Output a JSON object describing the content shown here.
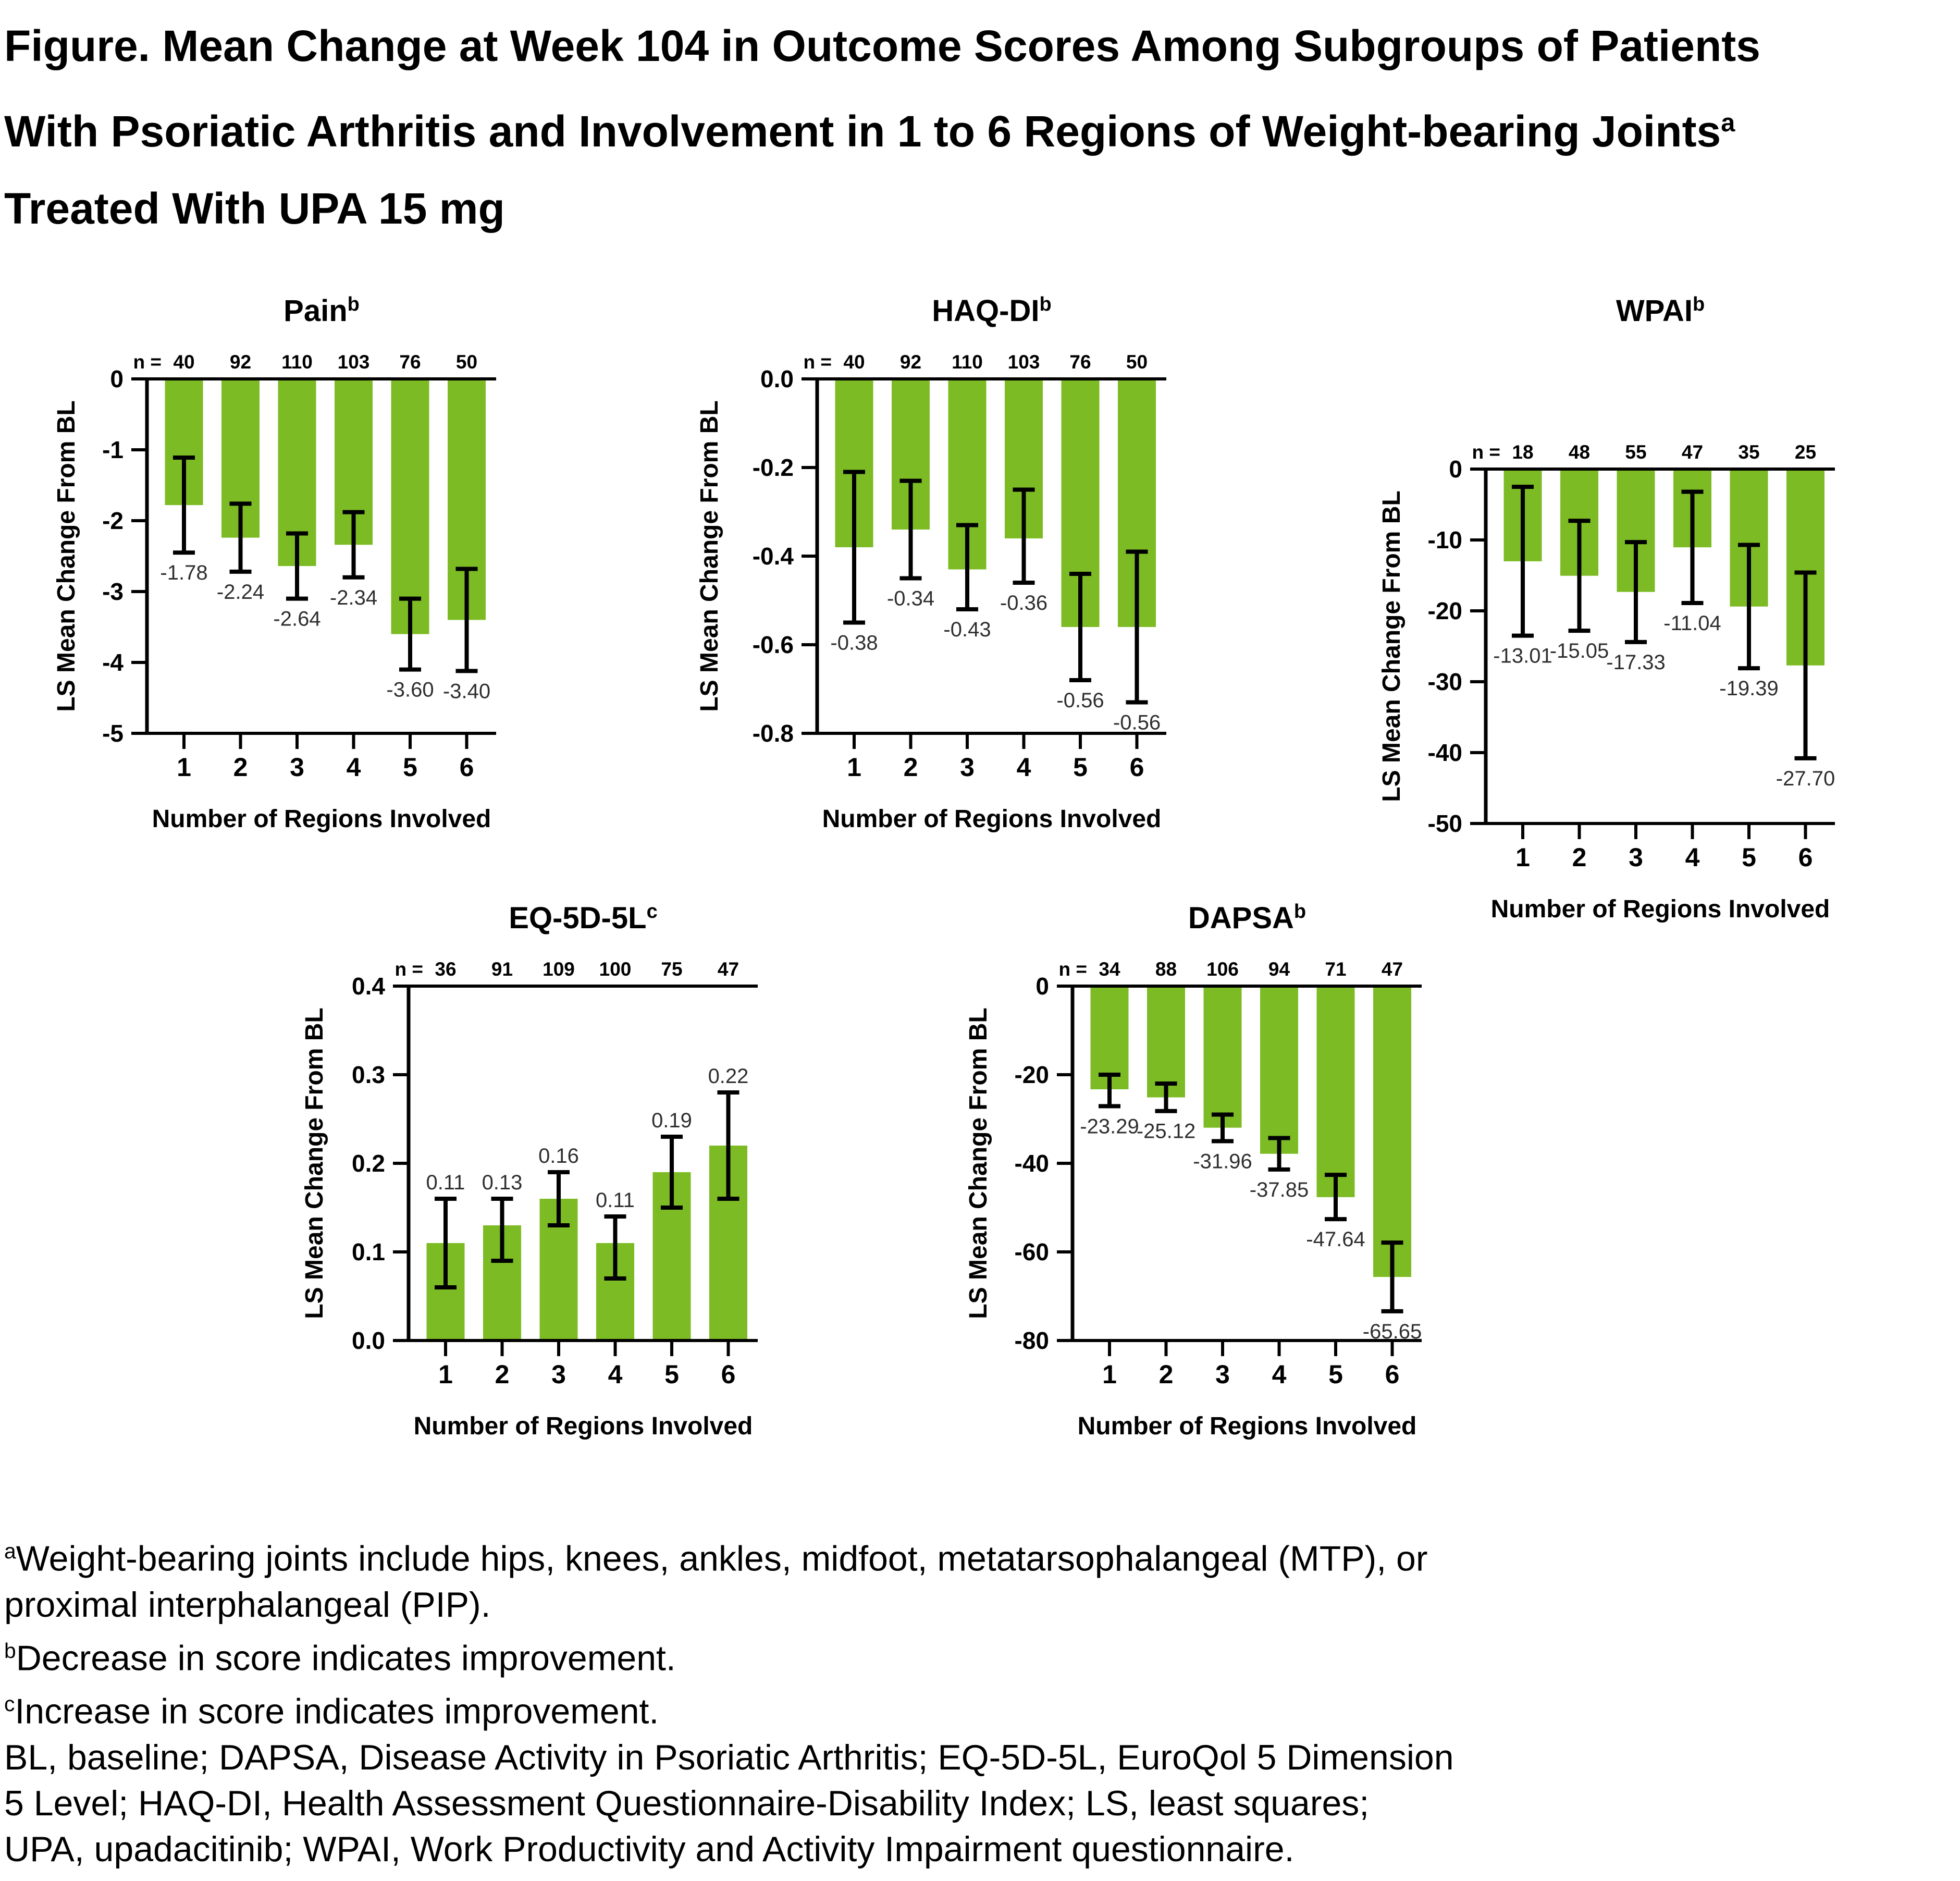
{
  "figure_title": {
    "line1": "Figure. Mean Change at Week 104 in Outcome Scores Among Subgroups of Patients",
    "line2": "With Psoriatic Arthritis and Involvement in 1 to 6 Regions of Weight-bearing Joints",
    "line2_sup": "a",
    "line3": "Treated With UPA 15 mg"
  },
  "colors": {
    "bar_green": "#7CBB23",
    "axis_black": "#000000",
    "error_bar_black": "#000000",
    "value_label_gray": "#2e2e2e",
    "background": "#FFFFFF"
  },
  "chart_data": [
    {
      "type": "bar",
      "id": "pain",
      "title": "Pain",
      "title_sup": "b",
      "n_label": "n =",
      "n": [
        "40",
        "92",
        "110",
        "103",
        "76",
        "50"
      ],
      "categories": [
        "1",
        "2",
        "3",
        "4",
        "5",
        "6"
      ],
      "values": [
        -1.78,
        -2.24,
        -2.64,
        -2.34,
        -3.6,
        -3.4
      ],
      "value_labels": [
        "-1.78",
        "-2.24",
        "-2.64",
        "-2.34",
        "-3.60",
        "-3.40"
      ],
      "err_lo": [
        -2.45,
        -2.72,
        -3.1,
        -2.8,
        -4.1,
        -4.12
      ],
      "err_hi": [
        -1.11,
        -1.76,
        -2.18,
        -1.88,
        -3.1,
        -2.68
      ],
      "ylim": [
        -5,
        0
      ],
      "yticks": [
        "0",
        "-1",
        "-2",
        "-3",
        "-4",
        "-5"
      ],
      "ytick_values": [
        0,
        -1,
        -2,
        -3,
        -4,
        -5
      ],
      "xlabel": "Number of Regions Involved",
      "ylabel": "LS Mean Change From BL",
      "grid": false,
      "legend": false
    },
    {
      "type": "bar",
      "id": "haq-di",
      "title": "HAQ-DI",
      "title_sup": "b",
      "n_label": "n =",
      "n": [
        "40",
        "92",
        "110",
        "103",
        "76",
        "50"
      ],
      "categories": [
        "1",
        "2",
        "3",
        "4",
        "5",
        "6"
      ],
      "values": [
        -0.38,
        -0.34,
        -0.43,
        -0.36,
        -0.56,
        -0.56
      ],
      "value_labels": [
        "-0.38",
        "-0.34",
        "-0.43",
        "-0.36",
        "-0.56",
        "-0.56"
      ],
      "err_lo": [
        -0.55,
        -0.45,
        -0.52,
        -0.46,
        -0.68,
        -0.73
      ],
      "err_hi": [
        -0.21,
        -0.23,
        -0.33,
        -0.25,
        -0.44,
        -0.39
      ],
      "ylim": [
        -0.8,
        0
      ],
      "yticks": [
        "0.0",
        "-0.2",
        "-0.4",
        "-0.6",
        "-0.8"
      ],
      "ytick_values": [
        0,
        -0.2,
        -0.4,
        -0.6,
        -0.8
      ],
      "xlabel": "Number of Regions Involved",
      "ylabel": "LS Mean Change From BL",
      "grid": false,
      "legend": false
    },
    {
      "type": "bar",
      "id": "wpai",
      "title": "WPAI",
      "title_sup": "b",
      "n_label": "n =",
      "n": [
        "18",
        "48",
        "55",
        "47",
        "35",
        "25"
      ],
      "categories": [
        "1",
        "2",
        "3",
        "4",
        "5",
        "6"
      ],
      "values": [
        -13.01,
        -15.05,
        -17.33,
        -11.04,
        -19.39,
        -27.7
      ],
      "value_labels": [
        "-13.01",
        "-15.05",
        "-17.33",
        "-11.04",
        "-19.39",
        "-27.70"
      ],
      "err_lo": [
        -23.5,
        -22.8,
        -24.4,
        -18.9,
        -28.1,
        -40.8
      ],
      "err_hi": [
        -2.5,
        -7.3,
        -10.3,
        -3.2,
        -10.7,
        -14.6
      ],
      "ylim": [
        -50,
        0
      ],
      "yticks": [
        "0",
        "-10",
        "-20",
        "-30",
        "-40",
        "-50"
      ],
      "ytick_values": [
        0,
        -10,
        -20,
        -30,
        -40,
        -50
      ],
      "xlabel": "Number of Regions Involved",
      "ylabel": "LS Mean Change From BL",
      "grid": false,
      "legend": false
    },
    {
      "type": "bar",
      "id": "eq-5d-5l",
      "title": "EQ-5D-5L",
      "title_sup": "c",
      "n_label": "n =",
      "n": [
        "36",
        "91",
        "109",
        "100",
        "75",
        "47"
      ],
      "categories": [
        "1",
        "2",
        "3",
        "4",
        "5",
        "6"
      ],
      "values": [
        0.11,
        0.13,
        0.16,
        0.11,
        0.19,
        0.22
      ],
      "value_labels": [
        "0.11",
        "0.13",
        "0.16",
        "0.11",
        "0.19",
        "0.22"
      ],
      "err_lo": [
        0.06,
        0.09,
        0.13,
        0.07,
        0.15,
        0.16
      ],
      "err_hi": [
        0.16,
        0.16,
        0.19,
        0.14,
        0.23,
        0.28
      ],
      "ylim": [
        0,
        0.4
      ],
      "yticks": [
        "0.4",
        "0.3",
        "0.2",
        "0.1",
        "0.0"
      ],
      "ytick_values": [
        0.4,
        0.3,
        0.2,
        0.1,
        0
      ],
      "xlabel": "Number of Regions Involved",
      "ylabel": "LS Mean Change From BL",
      "grid": false,
      "legend": false
    },
    {
      "type": "bar",
      "id": "dapsa",
      "title": "DAPSA",
      "title_sup": "b",
      "n_label": "n =",
      "n": [
        "34",
        "88",
        "106",
        "94",
        "71",
        "47"
      ],
      "categories": [
        "1",
        "2",
        "3",
        "4",
        "5",
        "6"
      ],
      "values": [
        -23.29,
        -25.12,
        -31.96,
        -37.85,
        -47.64,
        -65.65
      ],
      "value_labels": [
        "-23.29",
        "-25.12",
        "-31.96",
        "-37.85",
        "-47.64",
        "-65.65"
      ],
      "err_lo": [
        -27.1,
        -28.2,
        -35.0,
        -41.4,
        -52.6,
        -73.4
      ],
      "err_hi": [
        -20.0,
        -22.0,
        -29.0,
        -34.3,
        -42.6,
        -57.9
      ],
      "ylim": [
        -80,
        0
      ],
      "yticks": [
        "0",
        "-20",
        "-40",
        "-60",
        "-80"
      ],
      "ytick_values": [
        0,
        -20,
        -40,
        -60,
        -80
      ],
      "xlabel": "Number of Regions Involved",
      "ylabel": "LS Mean Change From BL",
      "grid": false,
      "legend": false
    }
  ],
  "footnotes": {
    "lines": [
      {
        "sup": "a",
        "text": "Weight-bearing joints include hips, knees, ankles, midfoot, metatarsophalangeal (MTP), or"
      },
      {
        "sup": "",
        "text": "proximal interphalangeal (PIP)."
      },
      {
        "sup": "b",
        "text": "Decrease in score indicates improvement."
      },
      {
        "sup": "c",
        "text": "Increase in score indicates improvement."
      },
      {
        "sup": "",
        "text": "BL, baseline; DAPSA, Disease Activity in Psoriatic Arthritis; EQ-5D-5L, EuroQol 5 Dimension"
      },
      {
        "sup": "",
        "text": "5 Level; HAQ-DI, Health Assessment Questionnaire-Disability Index; LS, least squares;"
      },
      {
        "sup": "",
        "text": "UPA, upadacitinib; WPAI, Work Productivity and Activity Impairment questionnaire."
      }
    ]
  }
}
